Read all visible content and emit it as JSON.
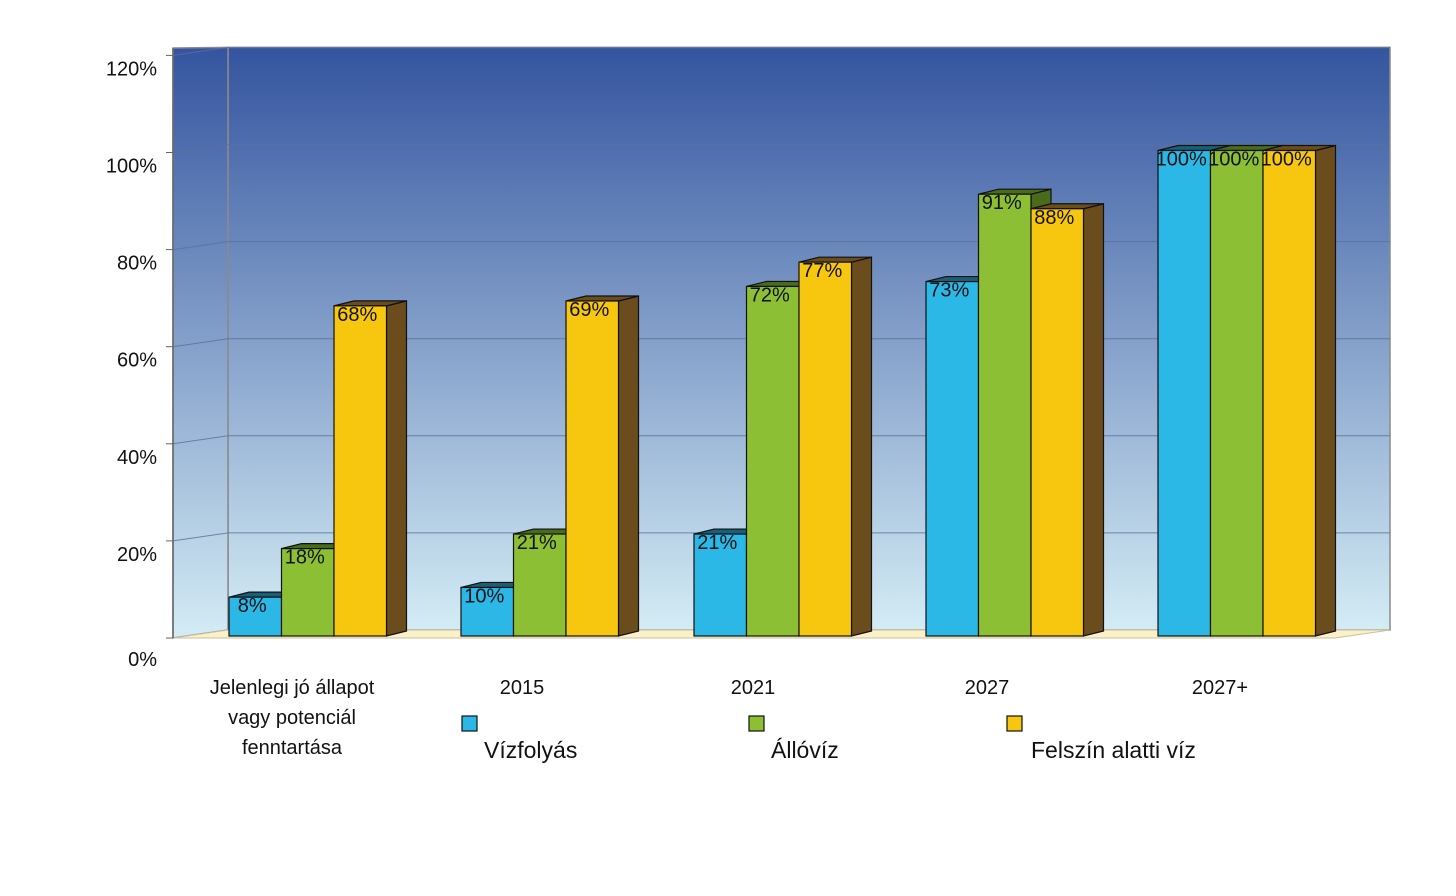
{
  "chart_data": {
    "type": "bar",
    "categories": [
      [
        "Jelenlegi jó állapot",
        "vagy potenciál",
        "fenntartása"
      ],
      [
        "2015"
      ],
      [
        "2021"
      ],
      [
        "2027"
      ],
      [
        "2027+"
      ]
    ],
    "series": [
      {
        "name": "Vízfolyás",
        "values": [
          8,
          10,
          21,
          73,
          100
        ],
        "labels": [
          "8%",
          "10%",
          "21%",
          "73%",
          "100%"
        ],
        "color": "#2bb8e6",
        "side": "#1a5f78"
      },
      {
        "name": "Állóvíz",
        "values": [
          18,
          21,
          72,
          91,
          100
        ],
        "labels": [
          "18%",
          "21%",
          "72%",
          "91%",
          "100%"
        ],
        "color": "#8dbf35",
        "side": "#4a6a1c"
      },
      {
        "name": "Felszín alatti víz",
        "values": [
          68,
          69,
          77,
          88,
          100
        ],
        "labels": [
          "68%",
          "69%",
          "77%",
          "88%",
          "100%"
        ],
        "color": "#f7c70f",
        "side": "#6b4c1c"
      }
    ],
    "yticks": [
      "0%",
      "20%",
      "40%",
      "60%",
      "80%",
      "100%",
      "120%"
    ],
    "ylim": [
      0,
      120
    ],
    "background": {
      "top": "#34549f",
      "bottom": "#d4ecf5"
    },
    "grid": true,
    "legend_position": "bottom",
    "title": "",
    "xlabel": "",
    "ylabel": ""
  }
}
